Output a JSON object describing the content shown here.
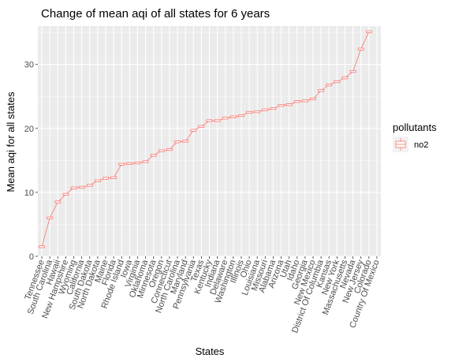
{
  "chart_data": {
    "type": "line",
    "title": "Change of mean aqi of all states for 6 years",
    "xlabel": "States",
    "ylabel": "Mean aqi for all states",
    "ylim": [
      0,
      36
    ],
    "yticks": [
      0,
      10,
      20,
      30
    ],
    "grid": true,
    "legend": {
      "title": "pollutants",
      "position": "right"
    },
    "categories": [
      "Tennessee",
      "South Carolina",
      "Hawaii",
      "New Hampshire",
      "Wyoming",
      "California",
      "South Dakota",
      "North Dakota",
      "Maine",
      "Florida",
      "Rhode Island",
      "Iowa",
      "Virginia",
      "Oklahoma",
      "Minnesota",
      "Oregon",
      "Connecticut",
      "North Carolina",
      "Maryland",
      "Pennsylvania",
      "Texas",
      "Kentucky",
      "Indiana",
      "Delaware",
      "Washington",
      "Illinois",
      "Ohio",
      "Louisiana",
      "Missouri",
      "Alabama",
      "Arizona",
      "Utah",
      "Idaho",
      "Georgia",
      "New Mexico",
      "District Of Columbia",
      "Kansas",
      "New York",
      "Massachusetts",
      "Nevada",
      "New Jersey",
      "Colorado",
      "Country Of Mexico"
    ],
    "series": [
      {
        "name": "no2",
        "color": "#f8766d",
        "values": [
          1.5,
          6.0,
          8.5,
          9.7,
          10.7,
          10.8,
          11.1,
          11.8,
          12.2,
          12.3,
          14.4,
          14.5,
          14.6,
          14.8,
          15.8,
          16.5,
          16.7,
          17.9,
          18.0,
          19.7,
          20.3,
          21.2,
          21.2,
          21.6,
          21.8,
          22.0,
          22.5,
          22.6,
          22.9,
          23.1,
          23.6,
          23.7,
          24.2,
          24.3,
          24.6,
          25.9,
          26.8,
          27.3,
          27.9,
          28.9,
          32.4,
          35.1,
          null
        ]
      }
    ]
  }
}
